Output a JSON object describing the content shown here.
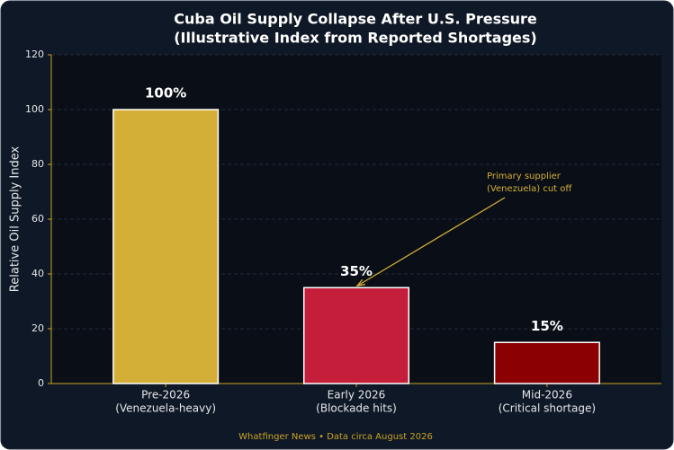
{
  "chart_data": {
    "type": "bar",
    "title": "Cuba Oil Supply Collapse After U.S. Pressure",
    "subtitle": "(Illustrative Index from Reported Shortages)",
    "y_label": "Relative Oil Supply Index",
    "categories": [
      [
        "Pre-2026",
        "(Venezuela-heavy)"
      ],
      [
        "Early 2026",
        "(Blockade hits)"
      ],
      [
        "Mid-2026",
        "(Critical shortage)"
      ]
    ],
    "values": [
      100,
      35,
      15
    ],
    "value_labels": [
      "100%",
      "35%",
      "15%"
    ],
    "colors": [
      "#d4af37",
      "#c41e3a",
      "#8b0000"
    ],
    "ylim": [
      0,
      120
    ],
    "yticks": [
      0,
      20,
      40,
      60,
      80,
      100,
      120
    ],
    "grid": true,
    "annotation": {
      "text": [
        "Primary supplier",
        "(Venezuela) cut off"
      ],
      "target": 1
    },
    "source": "Whatfinger News • Data circa August 2026"
  }
}
